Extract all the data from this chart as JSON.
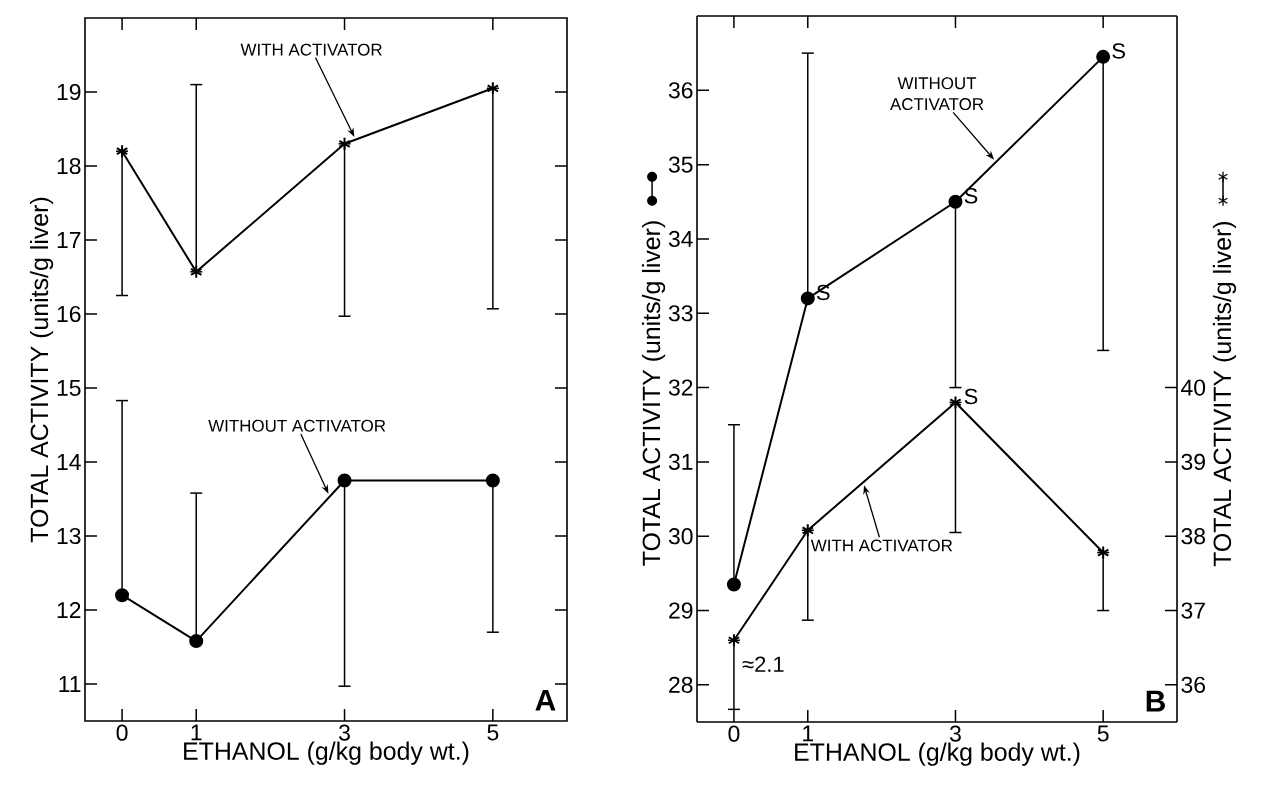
{
  "chart_data": [
    {
      "type": "line",
      "xlabel": "ETHANOL (g/kg body wt.)",
      "ylabel": "TOTAL ACTIVITY (units/g liver)",
      "x": [
        0,
        1,
        3,
        5
      ],
      "xlim": [
        -0.5,
        6
      ],
      "ylim": [
        10.5,
        20
      ],
      "xticks": [
        0,
        1,
        3,
        5
      ],
      "yticks": [
        11,
        12,
        13,
        14,
        15,
        16,
        17,
        18,
        19
      ],
      "line_style": "solid",
      "series": [
        {
          "name": "WITH ACTIVATOR",
          "color": "#000000",
          "marker": "cross",
          "values": [
            18.2,
            16.57,
            18.3,
            19.05
          ],
          "errors": [
            [
              16.25,
              18.2
            ],
            [
              16.57,
              19.1
            ],
            [
              15.97,
              18.3
            ],
            [
              16.07,
              19.05
            ]
          ]
        },
        {
          "name": "WITHOUT ACTIVATOR",
          "color": "#000000",
          "marker": "circle",
          "values": [
            12.2,
            11.58,
            13.75,
            13.75
          ],
          "errors": [
            [
              12.2,
              14.83
            ],
            [
              11.58,
              13.58
            ],
            [
              10.97,
              13.75
            ],
            [
              11.7,
              13.75
            ]
          ]
        }
      ],
      "annotations": [
        "A"
      ]
    },
    {
      "type": "line",
      "xlabel": "ETHANOL (g/kg body wt.)",
      "ylabel": "TOTAL ACTIVITY (units/g liver)",
      "y2label": "TOTAL ACTIVITY (units/g liver)",
      "x": [
        0,
        1,
        3,
        5
      ],
      "xlim": [
        -0.5,
        6
      ],
      "ylim": [
        27.5,
        37
      ],
      "y2lim": [
        35.5,
        45
      ],
      "xticks": [
        0,
        1,
        3,
        5
      ],
      "yticks": [
        28,
        29,
        30,
        31,
        32,
        33,
        34,
        35,
        36
      ],
      "y2ticks": [
        36,
        37,
        38,
        39,
        40
      ],
      "line_style": "solid",
      "series": [
        {
          "name": "WITHOUT ACTIVATOR",
          "color": "#000000",
          "marker": "circle",
          "values": [
            29.35,
            33.2,
            34.5,
            36.45
          ],
          "errors": [
            [
              29.35,
              31.5
            ],
            [
              33.2,
              36.5
            ],
            [
              32.0,
              34.5
            ],
            [
              32.5,
              36.45
            ]
          ]
        },
        {
          "name": "WITH ACTIVATOR",
          "color": "#000000",
          "marker": "cross",
          "axis": "y2",
          "values": [
            36.6,
            38.08,
            39.8,
            37.78
          ],
          "errors": [
            [
              35.67,
              36.6
            ],
            [
              36.87,
              38.08
            ],
            [
              38.05,
              39.8
            ],
            [
              37.0,
              37.78
            ]
          ]
        }
      ],
      "annotations": [
        "B",
        {
          "text": "S",
          "x": 1,
          "y": 33.2
        },
        {
          "text": "S",
          "x": 3,
          "y": 34.5
        },
        {
          "text": "S",
          "x": 5,
          "y": 36.45
        },
        {
          "text": "S",
          "x": 3,
          "y": 31.8
        },
        {
          "text": "≈2.1",
          "x": 0,
          "y": 28.2
        }
      ]
    }
  ]
}
